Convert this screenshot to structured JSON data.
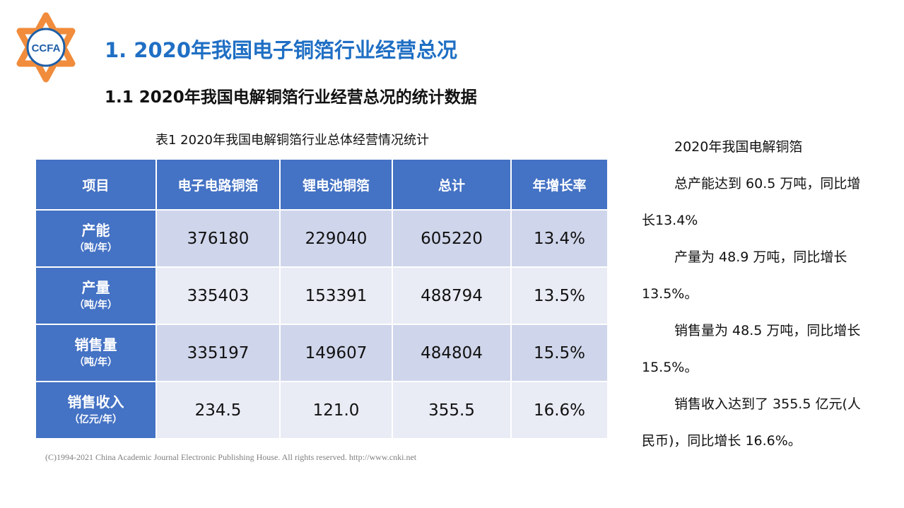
{
  "logo": {
    "text": "CCFA",
    "colors": {
      "ring": "#f08c3c",
      "inner": "#1f5fa8"
    }
  },
  "header": {
    "title": "1.  2020年我国电子铜箔行业经营总况",
    "subtitle": "1.1  2020年我国电解铜箔行业经营总况的统计数据"
  },
  "table": {
    "caption": "表1   2020年我国电解铜箔行业总体经营情况统计",
    "columns": [
      "项目",
      "电子电路铜箔",
      "锂电池铜箔",
      "总计",
      "年增长率"
    ],
    "rows": [
      {
        "name": "产能",
        "unit": "（吨/年）",
        "values": [
          "376180",
          "229040",
          "605220",
          "13.4%"
        ]
      },
      {
        "name": "产量",
        "unit": "（吨/年）",
        "values": [
          "335403",
          "153391",
          "488794",
          "13.5%"
        ]
      },
      {
        "name": "销售量",
        "unit": "（吨/年）",
        "values": [
          "335197",
          "149607",
          "484804",
          "15.5%"
        ]
      },
      {
        "name": "销售收入",
        "unit": "（亿元/年）",
        "values": [
          "234.5",
          "121.0",
          "355.5",
          "16.6%"
        ]
      }
    ],
    "colors": {
      "header": "#4472c4",
      "band_dark": "#cfd5ea",
      "band_light": "#e9ebf5"
    }
  },
  "footer": "(C)1994-2021 China Academic Journal Electronic Publishing House. All rights reserved.    http://www.cnki.net",
  "sidebar": {
    "paragraphs": [
      "2020年我国电解铜箔",
      "总产能达到 60.5 万吨，同比增长13.4%",
      "产量为 48.9 万吨，同比增长 13.5%。",
      "销售量为 48.5 万吨，同比增长 15.5%。",
      "销售收入达到了 355.5 亿元(人民币)，同比增长 16.6%。"
    ]
  }
}
